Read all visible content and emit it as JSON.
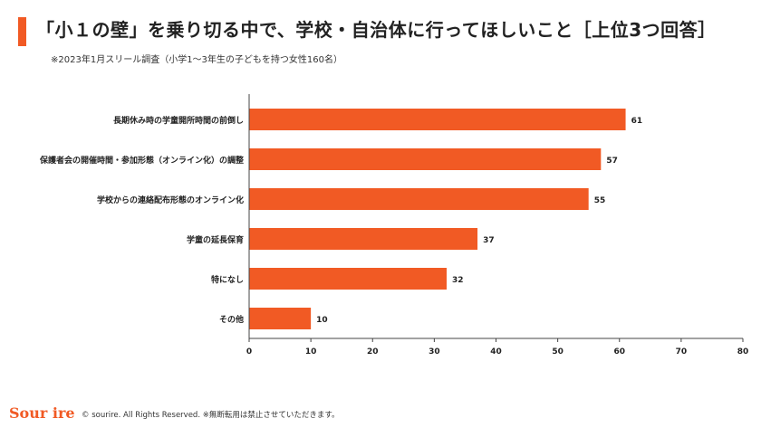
{
  "title": "「小１の壁」を乗り切る中で、学校・自治体に行ってほしいこと［上位3つ回答］",
  "subtitle": "※2023年1月スリール調査（小学1～3年生の子どもを持つ女性160名）",
  "colors": {
    "accent": "#f15a24",
    "bar": "#f15a24",
    "text": "#222222",
    "axis": "#444444"
  },
  "chart_data": {
    "type": "bar",
    "orientation": "horizontal",
    "categories": [
      "長期休み時の学童開所時間の前倒し",
      "保護者会の開催時間・参加形態（オンライン化）の調整",
      "学校からの連絡配布形態のオンライン化",
      "学童の延長保育",
      "特になし",
      "その他"
    ],
    "values": [
      61,
      57,
      55,
      37,
      32,
      10
    ],
    "data_labels": [
      "61",
      "57",
      "55",
      "37",
      "32",
      "10"
    ],
    "xlim": [
      0,
      80
    ],
    "xticks": [
      "0",
      "10",
      "20",
      "30",
      "40",
      "50",
      "60",
      "70",
      "80"
    ],
    "grid": false,
    "legend": "none"
  },
  "footer": {
    "logo": "Sour ire",
    "copyright": "© sourire. All Rights Reserved. ※無断転用は禁止させていただきます。"
  }
}
